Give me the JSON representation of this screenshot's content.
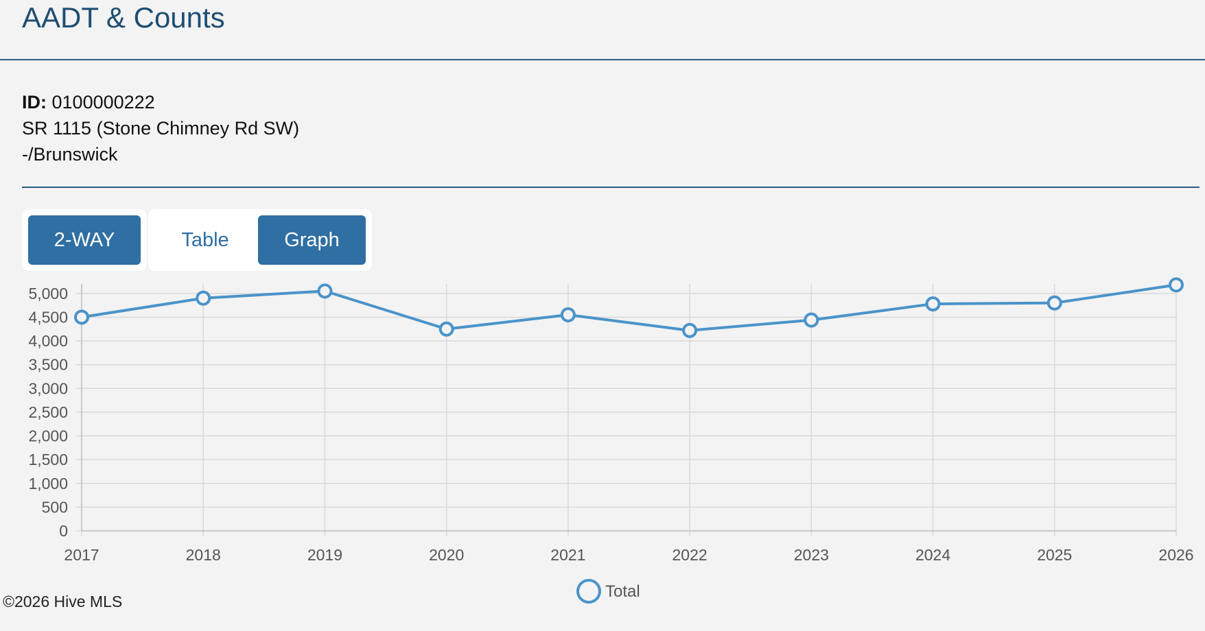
{
  "header": {
    "title": "AADT & Counts"
  },
  "station": {
    "id_label": "ID:",
    "id_value": "0100000222",
    "road": "SR 1115 (Stone Chimney Rd SW)",
    "location": "-/Brunswick"
  },
  "controls": {
    "direction_label": "2-WAY",
    "table_label": "Table",
    "graph_label": "Graph",
    "active_view": "Graph"
  },
  "colors": {
    "accent": "#2f6fa3",
    "series": "#4a93c9",
    "title": "#1e4e72",
    "grid": "#d9d9d9",
    "axis_text": "#555555"
  },
  "chart_data": {
    "type": "line",
    "x": [
      "2017",
      "2018",
      "2019",
      "2020",
      "2021",
      "2022",
      "2023",
      "2024",
      "2025",
      "2026"
    ],
    "series": [
      {
        "name": "Total",
        "values": [
          4500,
          4900,
          5050,
          4250,
          4550,
          4220,
          4440,
          4780,
          4800,
          5180
        ]
      }
    ],
    "yticks": [
      "0",
      "500",
      "1,000",
      "1,500",
      "2,000",
      "2,500",
      "3,000",
      "3,500",
      "4,000",
      "4,500",
      "5,000"
    ],
    "ylim": [
      0,
      5200
    ],
    "grid": true,
    "legend": "bottom-center"
  },
  "footer": {
    "copyright": "©2026 Hive MLS"
  }
}
